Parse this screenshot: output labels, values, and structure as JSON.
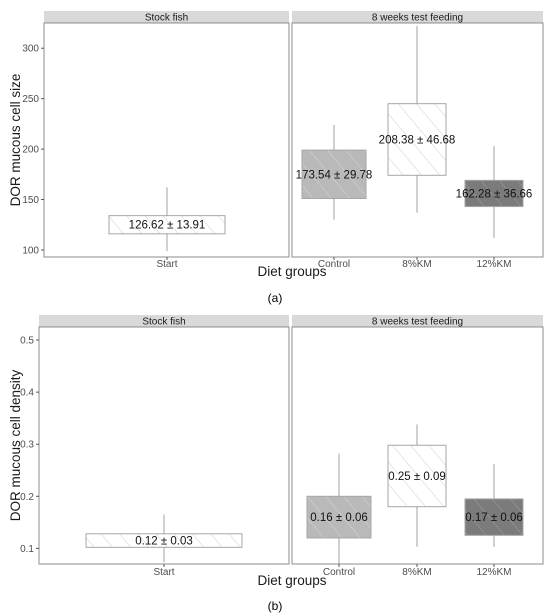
{
  "chart_data": [
    {
      "type": "box",
      "panel_label": "(a)",
      "ylabel": "DOR mucous cell size",
      "xlabel": "Diet groups",
      "ylim": [
        93,
        325
      ],
      "yticks": [
        100,
        150,
        200,
        250,
        300
      ],
      "grid": false,
      "facets": [
        {
          "title": "Stock fish",
          "categories": [
            "Start"
          ],
          "boxes": [
            {
              "category": "Start",
              "whisker_low": 99,
              "q1": 116,
              "q3": 134,
              "whisker_high": 162,
              "label": "126.62 ± 13.91",
              "fill": "#ffffff",
              "hatch": "#d6d6d6"
            }
          ]
        },
        {
          "title": "8 weeks test feeding",
          "categories": [
            "Control",
            "8%KM",
            "12%KM"
          ],
          "boxes": [
            {
              "category": "Control",
              "whisker_low": 130,
              "q1": 151,
              "q3": 199,
              "whisker_high": 224,
              "label": "173.54 ± 29.78",
              "fill": "#b9b9b9",
              "hatch": "#d3d3d3"
            },
            {
              "category": "8%KM",
              "whisker_low": 137,
              "q1": 174,
              "q3": 245,
              "whisker_high": 322,
              "label": "208.38 ± 46.68",
              "fill": "#ffffff",
              "hatch": "#d6d6d6"
            },
            {
              "category": "12%KM",
              "whisker_low": 112,
              "q1": 143,
              "q3": 169,
              "whisker_high": 203,
              "label": "162.28 ± 36.66",
              "fill": "#7b7b7b",
              "hatch": "#9a9a9a"
            }
          ]
        }
      ]
    },
    {
      "type": "box",
      "panel_label": "(b)",
      "ylabel": "DOR mucous cell density",
      "xlabel": "Diet groups",
      "ylim": [
        0.07,
        0.525
      ],
      "yticks": [
        0.1,
        0.2,
        0.3,
        0.4,
        0.5
      ],
      "grid": false,
      "facets": [
        {
          "title": "Stock fish",
          "categories": [
            "Start"
          ],
          "boxes": [
            {
              "category": "Start",
              "whisker_low": 0.073,
              "q1": 0.102,
              "q3": 0.128,
              "whisker_high": 0.165,
              "label": "0.12 ± 0.03",
              "fill": "#ffffff",
              "hatch": "#d6d6d6"
            }
          ]
        },
        {
          "title": "8 weeks test feeding",
          "categories": [
            "Control",
            "8%KM",
            "12%KM"
          ],
          "boxes": [
            {
              "category": "Control",
              "whisker_low": 0.07,
              "q1": 0.12,
              "q3": 0.2,
              "whisker_high": 0.282,
              "label": "0.16 ± 0.06",
              "fill": "#b9b9b9",
              "hatch": "#d3d3d3"
            },
            {
              "category": "8%KM",
              "whisker_low": 0.103,
              "q1": 0.18,
              "q3": 0.298,
              "whisker_high": 0.338,
              "label": "0.25 ± 0.09",
              "fill": "#ffffff",
              "hatch": "#d6d6d6"
            },
            {
              "category": "12%KM",
              "whisker_low": 0.103,
              "q1": 0.125,
              "q3": 0.195,
              "whisker_high": 0.262,
              "label": "0.17 ± 0.06",
              "fill": "#7b7b7b",
              "hatch": "#9a9a9a"
            }
          ]
        }
      ]
    }
  ]
}
